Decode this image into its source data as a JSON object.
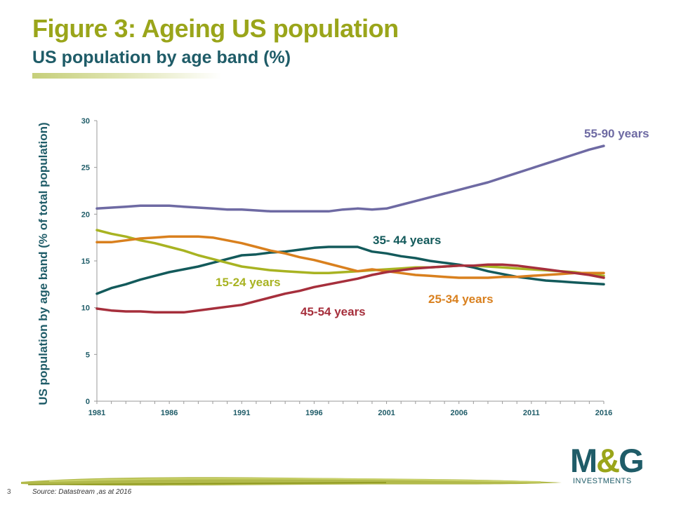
{
  "header": {
    "title": "Figure 3: Ageing US population",
    "subtitle": "US population by age band (%)"
  },
  "footer": {
    "page_number": "3",
    "source": "Source: Datastream ,as at 2016"
  },
  "logo": {
    "mark_left": "M",
    "mark_amp": "&",
    "mark_right": "G",
    "sub": "INVESTMENTS"
  },
  "colors": {
    "olive": "#9aa51a",
    "teal": "#1f5c68",
    "s_55_90": "#6e6aa3",
    "s_35_44": "#135a5b",
    "s_15_24": "#a8b322",
    "s_25_34": "#d9801e",
    "s_45_54": "#a62f3c"
  },
  "chart_data": {
    "type": "line",
    "ylabel": "US population by age band (% of total population)",
    "xlabel": "",
    "ylim": [
      0,
      30
    ],
    "xlim": [
      1981,
      2016
    ],
    "yticks": [
      "0",
      "5",
      "10",
      "15",
      "20",
      "25",
      "30"
    ],
    "xticks": [
      "1981",
      "1986",
      "1991",
      "1996",
      "2001",
      "2006",
      "2011",
      "2016"
    ],
    "grid": false,
    "x": [
      1981,
      1982,
      1983,
      1984,
      1985,
      1986,
      1987,
      1988,
      1989,
      1990,
      1991,
      1992,
      1993,
      1994,
      1995,
      1996,
      1997,
      1998,
      1999,
      2000,
      2001,
      2002,
      2003,
      2004,
      2005,
      2006,
      2007,
      2008,
      2009,
      2010,
      2011,
      2012,
      2013,
      2014,
      2015,
      2016
    ],
    "series": [
      {
        "name": "55-90 years",
        "color": "#6e6aa3",
        "values": [
          20.6,
          20.7,
          20.8,
          20.9,
          20.9,
          20.9,
          20.8,
          20.7,
          20.6,
          20.5,
          20.5,
          20.4,
          20.3,
          20.3,
          20.3,
          20.3,
          20.3,
          20.5,
          20.6,
          20.5,
          20.6,
          21.0,
          21.4,
          21.8,
          22.2,
          22.6,
          23.0,
          23.4,
          23.9,
          24.4,
          24.9,
          25.4,
          25.9,
          26.4,
          26.9,
          27.3
        ]
      },
      {
        "name": "35- 44 years",
        "color": "#135a5b",
        "values": [
          11.5,
          12.1,
          12.5,
          13.0,
          13.4,
          13.8,
          14.1,
          14.4,
          14.8,
          15.2,
          15.6,
          15.7,
          15.9,
          16.0,
          16.2,
          16.4,
          16.5,
          16.5,
          16.5,
          16.0,
          15.8,
          15.5,
          15.3,
          15.0,
          14.8,
          14.6,
          14.3,
          13.9,
          13.6,
          13.3,
          13.1,
          12.9,
          12.8,
          12.7,
          12.6,
          12.5
        ]
      },
      {
        "name": "15-24 years",
        "color": "#a8b322",
        "values": [
          18.3,
          17.9,
          17.6,
          17.2,
          16.9,
          16.5,
          16.1,
          15.6,
          15.2,
          14.8,
          14.4,
          14.2,
          14.0,
          13.9,
          13.8,
          13.7,
          13.7,
          13.8,
          13.9,
          14.0,
          14.1,
          14.2,
          14.3,
          14.3,
          14.4,
          14.5,
          14.5,
          14.4,
          14.3,
          14.2,
          14.1,
          14.0,
          13.9,
          13.8,
          13.6,
          13.4
        ]
      },
      {
        "name": "25-34 years",
        "color": "#d9801e",
        "values": [
          17.0,
          17.0,
          17.2,
          17.4,
          17.5,
          17.6,
          17.6,
          17.6,
          17.5,
          17.2,
          16.9,
          16.5,
          16.1,
          15.8,
          15.4,
          15.1,
          14.7,
          14.3,
          13.9,
          14.1,
          13.9,
          13.7,
          13.5,
          13.4,
          13.3,
          13.2,
          13.2,
          13.2,
          13.3,
          13.3,
          13.4,
          13.5,
          13.6,
          13.7,
          13.7,
          13.7
        ]
      },
      {
        "name": "45-54 years",
        "color": "#a62f3c",
        "values": [
          9.9,
          9.7,
          9.6,
          9.6,
          9.5,
          9.5,
          9.5,
          9.7,
          9.9,
          10.1,
          10.3,
          10.7,
          11.1,
          11.5,
          11.8,
          12.2,
          12.5,
          12.8,
          13.1,
          13.5,
          13.8,
          14.0,
          14.2,
          14.3,
          14.4,
          14.5,
          14.5,
          14.6,
          14.6,
          14.5,
          14.3,
          14.1,
          13.9,
          13.7,
          13.5,
          13.2
        ]
      }
    ],
    "annotations": [
      {
        "text": "55-90 years",
        "series": "55-90 years"
      },
      {
        "text": "35- 44 years",
        "series": "35- 44 years"
      },
      {
        "text": "15-24 years",
        "series": "15-24 years"
      },
      {
        "text": "25-34 years",
        "series": "25-34 years"
      },
      {
        "text": "45-54 years",
        "series": "45-54 years"
      }
    ]
  }
}
